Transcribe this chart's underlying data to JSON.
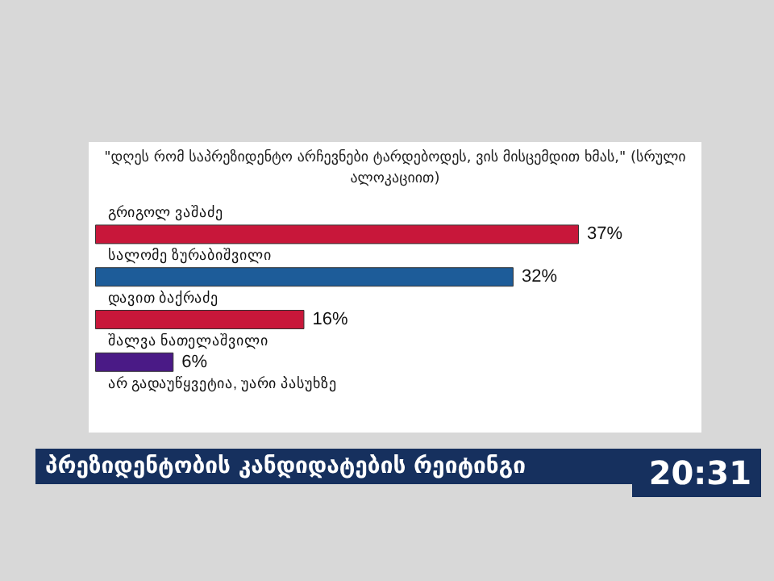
{
  "chart_data": {
    "type": "bar",
    "orientation": "horizontal",
    "title": "პრეზიდენტობის კანდიდატების რეიტინგი",
    "subtitle": "\"დღეს რომ საპრეზიდენტო არჩევნები ტარდებოდეს, ვის მისცემდით ხმას,\" (სრული ალოკაციით)",
    "categories": [
      "გრიგოლ ვაშაძე",
      "სალომე ზურაბიშვილი",
      "დავით ბაქრაძე",
      "შალვა ნათელაშვილი",
      "არ გადაუწყვეტია, უარი პასუხზე"
    ],
    "values": [
      37,
      32,
      16,
      6,
      null
    ],
    "colors": [
      "#c8173a",
      "#1d5c99",
      "#c8173a",
      "#4a1a86",
      "#4a1a86"
    ],
    "value_labels": [
      "37%",
      "32%",
      "16%",
      "6%",
      null
    ],
    "annotations": [
      "20:31"
    ]
  }
}
